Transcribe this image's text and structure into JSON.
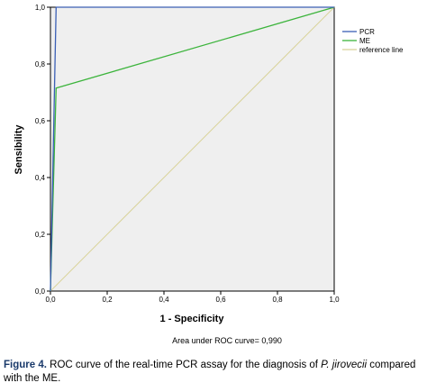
{
  "chart_data": {
    "type": "line",
    "xlabel": "1 - Specificity",
    "ylabel": "Sensibility",
    "xlim": [
      0,
      1
    ],
    "ylim": [
      0,
      1
    ],
    "x_ticks": [
      0,
      0.2,
      0.4,
      0.6,
      0.8,
      1.0
    ],
    "y_ticks": [
      0,
      0.2,
      0.4,
      0.6,
      0.8,
      1.0
    ],
    "x_tick_labels": [
      "0,0",
      "0,2",
      "0,4",
      "0,6",
      "0,8",
      "1,0"
    ],
    "y_tick_labels": [
      "0,0",
      "0,2",
      "0,4",
      "0,6",
      "0,8",
      "1,0"
    ],
    "grid": false,
    "legend_position": "top-right",
    "series": [
      {
        "name": "PCR",
        "color": "#3a5fb5",
        "points": [
          [
            0,
            0
          ],
          [
            0.02,
            1.0
          ],
          [
            1.0,
            1.0
          ]
        ]
      },
      {
        "name": "ME",
        "color": "#3cb43c",
        "points": [
          [
            0,
            0
          ],
          [
            0.02,
            0.715
          ],
          [
            1.0,
            1.0
          ]
        ]
      },
      {
        "name": "reference line",
        "color": "#d9d39a",
        "points": [
          [
            0,
            0
          ],
          [
            1.0,
            1.0
          ]
        ]
      }
    ],
    "annotation": "Area under ROC curve= 0,990"
  },
  "caption": {
    "label": "Figure 4.",
    "text_before_italic": " ROC curve of the real-time PCR assay for the diagnosis of ",
    "italic": "P. jirovecii",
    "text_after_italic": " compared with the ME."
  }
}
